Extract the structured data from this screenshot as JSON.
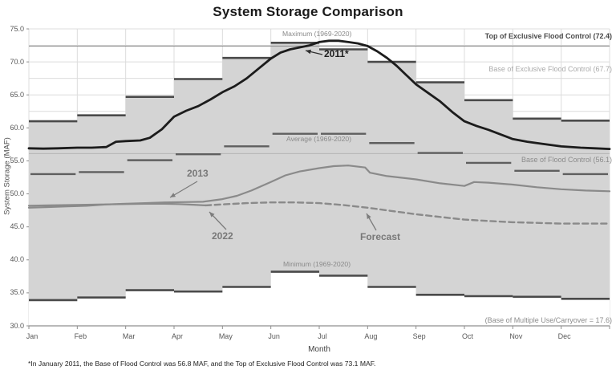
{
  "chart_data": {
    "type": "line",
    "title": "System Storage Comparison",
    "xlabel": "Month",
    "ylabel": "System Storage (MAF)",
    "ylim": [
      30.0,
      75.0
    ],
    "y_tick_step": 5.0,
    "minor_grid_step": 2.5,
    "grid": true,
    "months": [
      "Jan",
      "Feb",
      "Mar",
      "Apr",
      "May",
      "Jun",
      "Jul",
      "Aug",
      "Sep",
      "Oct",
      "Nov",
      "Dec"
    ],
    "band": {
      "max_label": "Maximum (1969-2020)",
      "min_label": "Minimum (1969-2020)",
      "maximum": [
        61.0,
        61.9,
        64.7,
        67.4,
        70.6,
        72.9,
        71.9,
        70.0,
        66.9,
        64.2,
        61.4,
        61.1
      ],
      "minimum": [
        33.9,
        34.3,
        35.4,
        35.2,
        35.9,
        38.2,
        37.6,
        35.9,
        34.7,
        34.5,
        34.4,
        34.1
      ]
    },
    "average": {
      "label": "Average (1969-2020)",
      "values": [
        53.0,
        53.3,
        55.1,
        56.0,
        57.2,
        59.1,
        59.1,
        57.7,
        56.2,
        54.7,
        53.5,
        53.0
      ]
    },
    "series": [
      {
        "name": "2011*",
        "points": [
          [
            0,
            56.9
          ],
          [
            0.3,
            56.85
          ],
          [
            0.6,
            56.9
          ],
          [
            1,
            57.0
          ],
          [
            1.3,
            57.0
          ],
          [
            1.6,
            57.1
          ],
          [
            1.8,
            57.9
          ],
          [
            2,
            58.0
          ],
          [
            2.3,
            58.1
          ],
          [
            2.5,
            58.5
          ],
          [
            2.75,
            59.8
          ],
          [
            3,
            61.7
          ],
          [
            3.25,
            62.6
          ],
          [
            3.5,
            63.3
          ],
          [
            3.75,
            64.3
          ],
          [
            4,
            65.4
          ],
          [
            4.25,
            66.3
          ],
          [
            4.5,
            67.5
          ],
          [
            4.75,
            69.0
          ],
          [
            5,
            70.5
          ],
          [
            5.2,
            71.4
          ],
          [
            5.4,
            71.9
          ],
          [
            5.6,
            72.2
          ],
          [
            5.8,
            72.5
          ],
          [
            6,
            73.0
          ],
          [
            6.2,
            73.2
          ],
          [
            6.4,
            73.2
          ],
          [
            6.6,
            73.0
          ],
          [
            6.8,
            72.8
          ],
          [
            7,
            72.4
          ],
          [
            7.2,
            71.6
          ],
          [
            7.4,
            70.6
          ],
          [
            7.6,
            69.4
          ],
          [
            7.8,
            68.0
          ],
          [
            8,
            66.6
          ],
          [
            8.25,
            65.3
          ],
          [
            8.5,
            64.0
          ],
          [
            8.75,
            62.4
          ],
          [
            9,
            61.0
          ],
          [
            9.25,
            60.3
          ],
          [
            9.5,
            59.7
          ],
          [
            9.75,
            59.0
          ],
          [
            10,
            58.3
          ],
          [
            10.3,
            57.9
          ],
          [
            10.6,
            57.6
          ],
          [
            11,
            57.2
          ],
          [
            11.4,
            57.0
          ],
          [
            11.7,
            56.9
          ],
          [
            12,
            56.8
          ]
        ]
      },
      {
        "name": "2013",
        "points": [
          [
            0,
            47.9
          ],
          [
            0.4,
            48.0
          ],
          [
            0.8,
            48.1
          ],
          [
            1.2,
            48.2
          ],
          [
            1.6,
            48.4
          ],
          [
            2,
            48.5
          ],
          [
            2.4,
            48.6
          ],
          [
            2.8,
            48.7
          ],
          [
            3.2,
            48.75
          ],
          [
            3.6,
            48.8
          ],
          [
            4,
            49.2
          ],
          [
            4.3,
            49.7
          ],
          [
            4.6,
            50.5
          ],
          [
            5,
            51.8
          ],
          [
            5.3,
            52.8
          ],
          [
            5.6,
            53.4
          ],
          [
            6,
            53.9
          ],
          [
            6.3,
            54.2
          ],
          [
            6.6,
            54.3
          ],
          [
            6.95,
            54.0
          ],
          [
            7.05,
            53.2
          ],
          [
            7.4,
            52.7
          ],
          [
            8,
            52.2
          ],
          [
            8.5,
            51.6
          ],
          [
            9,
            51.2
          ],
          [
            9.2,
            51.8
          ],
          [
            9.5,
            51.7
          ],
          [
            10,
            51.4
          ],
          [
            10.5,
            51.0
          ],
          [
            11,
            50.7
          ],
          [
            11.5,
            50.5
          ],
          [
            12,
            50.4
          ]
        ]
      },
      {
        "name": "2022",
        "points": [
          [
            0,
            48.2
          ],
          [
            0.4,
            48.25
          ],
          [
            0.8,
            48.3
          ],
          [
            1.2,
            48.35
          ],
          [
            1.6,
            48.4
          ],
          [
            2,
            48.45
          ],
          [
            2.4,
            48.5
          ],
          [
            2.8,
            48.5
          ],
          [
            3.1,
            48.45
          ],
          [
            3.4,
            48.35
          ],
          [
            3.65,
            48.25
          ]
        ]
      },
      {
        "name": "Forecast",
        "dashed": true,
        "points": [
          [
            3.65,
            48.25
          ],
          [
            4,
            48.4
          ],
          [
            4.5,
            48.6
          ],
          [
            5,
            48.7
          ],
          [
            5.5,
            48.7
          ],
          [
            6,
            48.6
          ],
          [
            6.5,
            48.3
          ],
          [
            7,
            47.9
          ],
          [
            7.5,
            47.4
          ],
          [
            8,
            46.9
          ],
          [
            8.5,
            46.5
          ],
          [
            9,
            46.1
          ],
          [
            9.5,
            45.9
          ],
          [
            10,
            45.7
          ],
          [
            10.5,
            45.6
          ],
          [
            11,
            45.5
          ],
          [
            11.5,
            45.5
          ],
          [
            12,
            45.5
          ]
        ]
      }
    ],
    "reference_lines": [
      {
        "label": "Top of Exclusive Flood Control (72.4)",
        "value": 72.4,
        "line_visible": true
      },
      {
        "label": "Base of Exclusive Flood Control (67.7)",
        "value": 67.7,
        "line_visible": false
      },
      {
        "label": "Base of Flood Control (56.1)",
        "value": 56.1,
        "line_visible": true
      },
      {
        "label": "(Base of Multiple Use/Carryover = 17.6)",
        "value": 17.6,
        "line_visible": false
      }
    ],
    "footnote": "*In January 2011, the Base of Flood Control was 56.8 MAF, and the Top of Exclusive Flood Control was 73.1 MAF.",
    "colors": {
      "band_fill": "#d4d4d4",
      "extreme_segment": "#4a4a4a",
      "average_segment": "#5f5f5f",
      "line_2011": "#1c1c1c",
      "line_gray": "#8a8a8a",
      "grid": "#dcdcdc",
      "axis": "#8f8f8f",
      "ref_top_line": "#858585",
      "ref_base_flood_line": "#b8b8b8"
    }
  }
}
